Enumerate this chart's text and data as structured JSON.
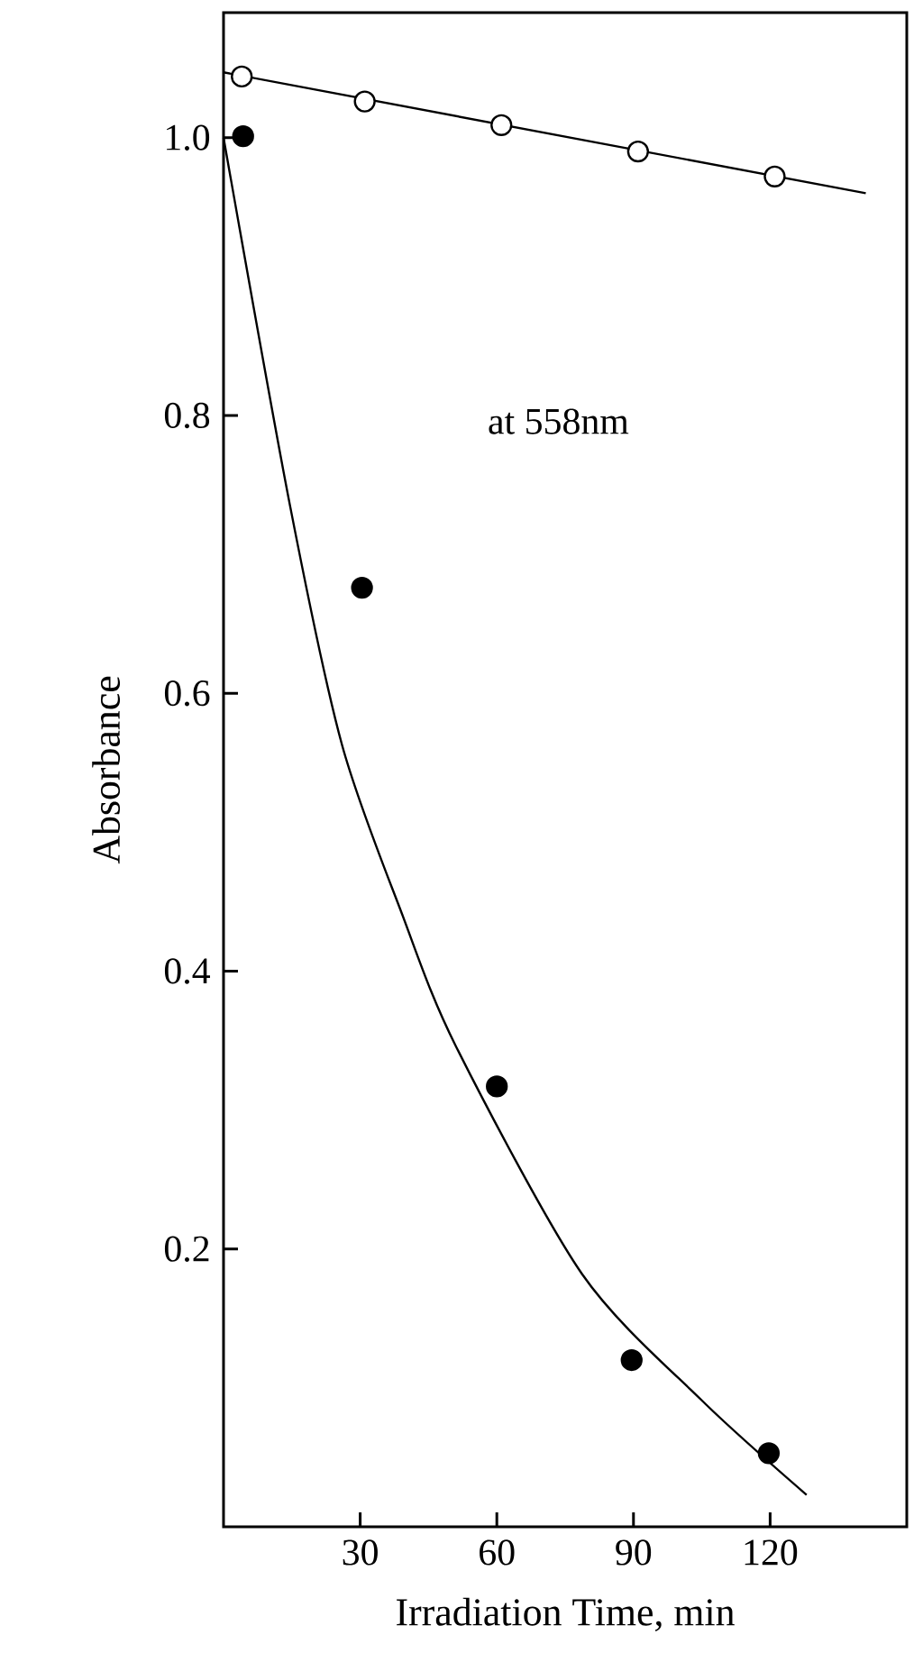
{
  "chart_data": {
    "type": "scatter",
    "xlabel": "Irradiation Time, min",
    "ylabel": "Absorbance",
    "annotations": [
      "at 558nm"
    ],
    "xlim": [
      0,
      150
    ],
    "xticks": [
      30,
      60,
      90,
      120
    ],
    "ylim": [
      0,
      1.09
    ],
    "yticks": [
      0.2,
      0.4,
      0.6,
      0.8,
      {
        "value": 1,
        "label": "1.0"
      }
    ],
    "grid": false,
    "series": [
      {
        "type": "line",
        "marker": "none",
        "color": "#000000",
        "x": [
          0,
          141
        ],
        "values": [
          1.047,
          0.96
        ]
      },
      {
        "marker": "circle",
        "color": "#ffffff",
        "x": [
          4,
          31,
          61,
          91,
          121
        ],
        "values": [
          1.044,
          1.026,
          1.009,
          0.99,
          0.972
        ]
      },
      {
        "type": "line",
        "marker": "none",
        "color": "#000000",
        "x": [
          0,
          14.6,
          26,
          39.2,
          51,
          78.7,
          105,
          128
        ],
        "values": [
          1.0,
          0.735,
          0.563,
          0.441,
          0.346,
          0.182,
          0.091,
          0.023
        ]
      },
      {
        "marker": "circle",
        "color": "#000000",
        "x": [
          4.3,
          30.4,
          60,
          89.6,
          119.7
        ],
        "values": [
          1.001,
          0.676,
          0.317,
          0.12,
          0.053
        ]
      }
    ]
  }
}
